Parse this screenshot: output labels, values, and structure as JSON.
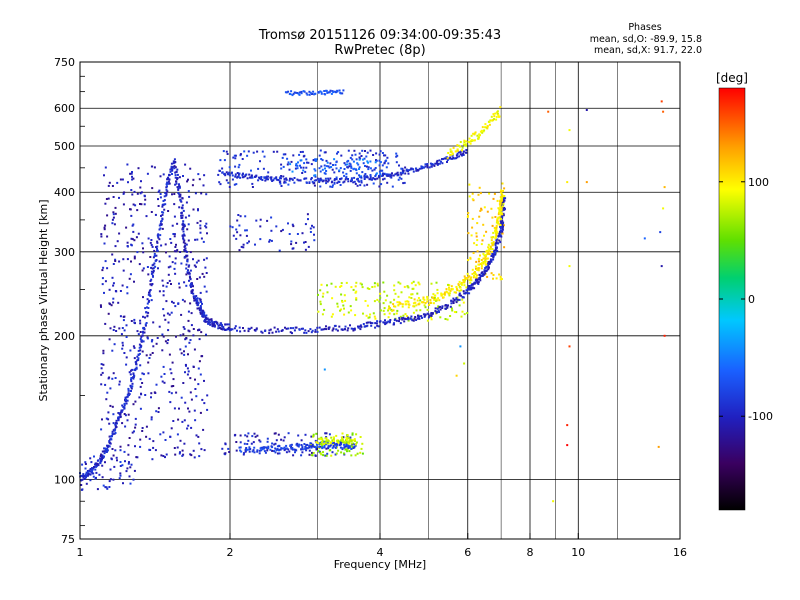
{
  "chart_data": {
    "type": "scatter",
    "title": "Tromsø 20151126 09:34:00-09:35:43",
    "subtitle": "RwPretec (8p)",
    "xlabel": "Frequency [MHz]",
    "ylabel": "Stationary phase Virtual Height [km]",
    "x_scale": "log",
    "y_scale": "log",
    "xlim": [
      1,
      16
    ],
    "ylim": [
      75,
      750
    ],
    "x_ticks": [
      "1",
      "2",
      "4",
      "6",
      "8",
      "10",
      "16"
    ],
    "x_tick_values": [
      1,
      2,
      4,
      6,
      8,
      10,
      16
    ],
    "x_minor_ticks": [
      3,
      5,
      7,
      9,
      12
    ],
    "y_ticks": [
      "750",
      "600",
      "500",
      "400",
      "300",
      "200",
      "100",
      "75"
    ],
    "y_tick_values": [
      750,
      600,
      500,
      400,
      300,
      200,
      100,
      75
    ],
    "grid": true,
    "colorbar": {
      "label": "[deg]",
      "range": [
        -180,
        180
      ],
      "ticks": [
        "100",
        "0",
        "-100"
      ],
      "tick_values": [
        100,
        0,
        -100
      ],
      "colors": [
        "#000000",
        "#3a0060",
        "#2020c0",
        "#1a60ff",
        "#00c8ff",
        "#00d070",
        "#60e000",
        "#ffff00",
        "#ffa000",
        "#ff0000"
      ]
    },
    "phases_box": {
      "title": "Phases",
      "line_o": "mean, sd,O: -89.9, 15.8",
      "line_x": "mean, sd,X: 91.7, 22.0"
    },
    "traces": [
      {
        "name": "",
        "phase": -95,
        "spread": 0.012,
        "points": [
          [
            1.0,
            100
          ],
          [
            1.05,
            104
          ],
          [
            1.1,
            110
          ],
          [
            1.15,
            120
          ],
          [
            1.2,
            135
          ],
          [
            1.25,
            150
          ],
          [
            1.3,
            175
          ],
          [
            1.35,
            210
          ],
          [
            1.4,
            270
          ],
          [
            1.45,
            340
          ],
          [
            1.5,
            420
          ],
          [
            1.55,
            470
          ]
        ]
      },
      {
        "name": "",
        "phase": -100,
        "spread": 0.015,
        "points": [
          [
            1.55,
            450
          ],
          [
            1.6,
            380
          ],
          [
            1.62,
            320
          ],
          [
            1.65,
            270
          ],
          [
            1.7,
            240
          ],
          [
            1.75,
            225
          ],
          [
            1.8,
            215
          ],
          [
            1.9,
            210
          ],
          [
            2.0,
            208
          ],
          [
            2.5,
            205
          ],
          [
            3.0,
            206
          ],
          [
            3.5,
            208
          ],
          [
            4.0,
            212
          ],
          [
            4.5,
            216
          ],
          [
            5.0,
            222
          ],
          [
            5.5,
            232
          ],
          [
            6.0,
            248
          ],
          [
            6.3,
            262
          ],
          [
            6.6,
            280
          ],
          [
            6.8,
            300
          ],
          [
            7.0,
            330
          ],
          [
            7.05,
            360
          ],
          [
            7.1,
            390
          ]
        ]
      },
      {
        "name": "",
        "phase": -95,
        "spread": 0.012,
        "points": [
          [
            1.9,
            440
          ],
          [
            2.2,
            430
          ],
          [
            2.5,
            425
          ],
          [
            3.0,
            422
          ],
          [
            3.5,
            424
          ],
          [
            4.0,
            430
          ],
          [
            4.5,
            440
          ],
          [
            5.0,
            455
          ],
          [
            5.5,
            470
          ],
          [
            6.0,
            490
          ]
        ]
      },
      {
        "name": "",
        "phase": 100,
        "spread": 0.02,
        "points": [
          [
            4.2,
            230
          ],
          [
            4.8,
            235
          ],
          [
            5.3,
            242
          ],
          [
            5.8,
            255
          ],
          [
            6.2,
            270
          ],
          [
            6.5,
            290
          ],
          [
            6.7,
            310
          ],
          [
            6.9,
            340
          ],
          [
            7.0,
            370
          ],
          [
            7.05,
            400
          ]
        ]
      },
      {
        "name": "",
        "phase": 90,
        "spread": 0.02,
        "points": [
          [
            5.5,
            480
          ],
          [
            6.0,
            510
          ],
          [
            6.5,
            540
          ],
          [
            7.0,
            600
          ]
        ]
      },
      {
        "name": "",
        "phase": -80,
        "spread": 0.015,
        "points": [
          [
            2.1,
            115
          ],
          [
            2.4,
            116
          ],
          [
            2.7,
            117
          ],
          [
            3.0,
            118
          ],
          [
            3.3,
            118
          ],
          [
            3.6,
            117
          ]
        ]
      },
      {
        "name": "",
        "phase": 80,
        "spread": 0.015,
        "points": [
          [
            3.0,
            120
          ],
          [
            3.3,
            121
          ],
          [
            3.6,
            120
          ]
        ]
      },
      {
        "name": "",
        "phase": -70,
        "spread": 0.01,
        "points": [
          [
            2.6,
            645
          ],
          [
            3.0,
            647
          ],
          [
            3.4,
            650
          ]
        ]
      }
    ],
    "clouds": [
      {
        "phase": -105,
        "x": [
          1.1,
          1.8
        ],
        "y": [
          110,
          460
        ],
        "count": 600
      },
      {
        "phase": -90,
        "x": [
          1.9,
          4.5
        ],
        "y": [
          410,
          490
        ],
        "count": 220
      },
      {
        "phase": -60,
        "x": [
          2.6,
          4.2
        ],
        "y": [
          430,
          470
        ],
        "count": 80
      },
      {
        "phase": 80,
        "x": [
          3.0,
          6.0
        ],
        "y": [
          215,
          260
        ],
        "count": 180
      },
      {
        "phase": -100,
        "x": [
          2.0,
          3.0
        ],
        "y": [
          300,
          360
        ],
        "count": 60
      },
      {
        "phase": -100,
        "x": [
          1.9,
          3.5
        ],
        "y": [
          112,
          125
        ],
        "count": 120
      },
      {
        "phase": 70,
        "x": [
          2.9,
          3.7
        ],
        "y": [
          112,
          125
        ],
        "count": 70
      },
      {
        "phase": 110,
        "x": [
          6.0,
          7.1
        ],
        "y": [
          260,
          420
        ],
        "count": 90
      },
      {
        "phase": -95,
        "x": [
          1.0,
          1.3
        ],
        "y": [
          95,
          112
        ],
        "count": 60
      }
    ],
    "sparse_points": [
      [
        8.7,
        590,
        150
      ],
      [
        9.6,
        540,
        90
      ],
      [
        10.4,
        595,
        -110
      ],
      [
        10.4,
        420,
        130
      ],
      [
        9.5,
        420,
        100
      ],
      [
        14.7,
        620,
        160
      ],
      [
        14.8,
        590,
        150
      ],
      [
        14.9,
        410,
        120
      ],
      [
        14.8,
        370,
        90
      ],
      [
        14.6,
        330,
        -80
      ],
      [
        14.7,
        280,
        -110
      ],
      [
        14.9,
        200,
        170
      ],
      [
        14.5,
        117,
        130
      ],
      [
        13.6,
        320,
        -60
      ],
      [
        9.6,
        280,
        90
      ],
      [
        9.6,
        190,
        160
      ],
      [
        9.5,
        130,
        170
      ],
      [
        9.5,
        118,
        180
      ],
      [
        8.9,
        90,
        90
      ],
      [
        5.8,
        190,
        -40
      ],
      [
        5.9,
        175,
        80
      ],
      [
        5.7,
        165,
        110
      ],
      [
        3.1,
        170,
        -40
      ],
      [
        1.8,
        150,
        -100
      ]
    ]
  }
}
